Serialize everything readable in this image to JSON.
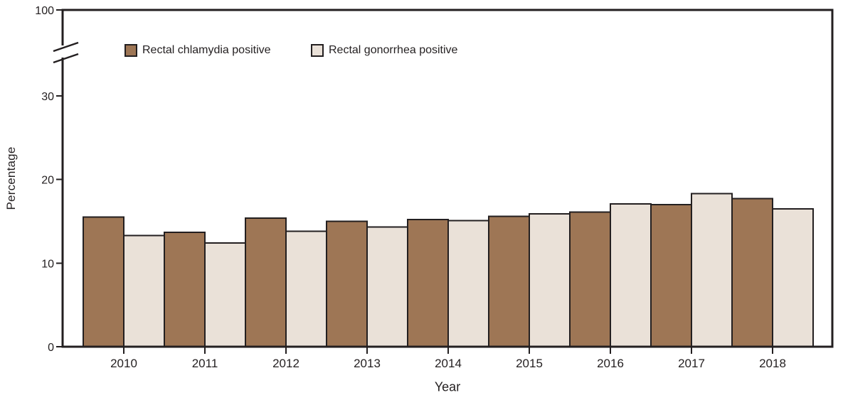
{
  "figure": {
    "background_color": "#ffffff",
    "axis_color": "#231f20",
    "text_color": "#231f20"
  },
  "chart_data": {
    "type": "bar",
    "title": "",
    "xlabel": "Year",
    "ylabel": "Percentage",
    "categories": [
      "2010",
      "2011",
      "2012",
      "2013",
      "2014",
      "2015",
      "2016",
      "2017",
      "2018"
    ],
    "series": [
      {
        "name": "Rectal chlamydia positive",
        "color": "#9E7655",
        "values": [
          15.5,
          13.7,
          15.4,
          15.0,
          15.2,
          15.6,
          16.1,
          17.0,
          17.7
        ]
      },
      {
        "name": "Rectal gonorrhea positive",
        "color": "#EAE1D8",
        "values": [
          13.3,
          12.4,
          13.8,
          14.3,
          15.1,
          15.9,
          17.1,
          18.3,
          16.5
        ]
      }
    ],
    "bar_outline_color": "#231f20",
    "y_ticks": [
      0,
      10,
      20,
      30
    ],
    "y_break_upper_tick_label": "100",
    "ylim": [
      0,
      100
    ],
    "axis_break_between": [
      33,
      100
    ],
    "grid": false,
    "legend_position": "top-left inside plot area"
  }
}
